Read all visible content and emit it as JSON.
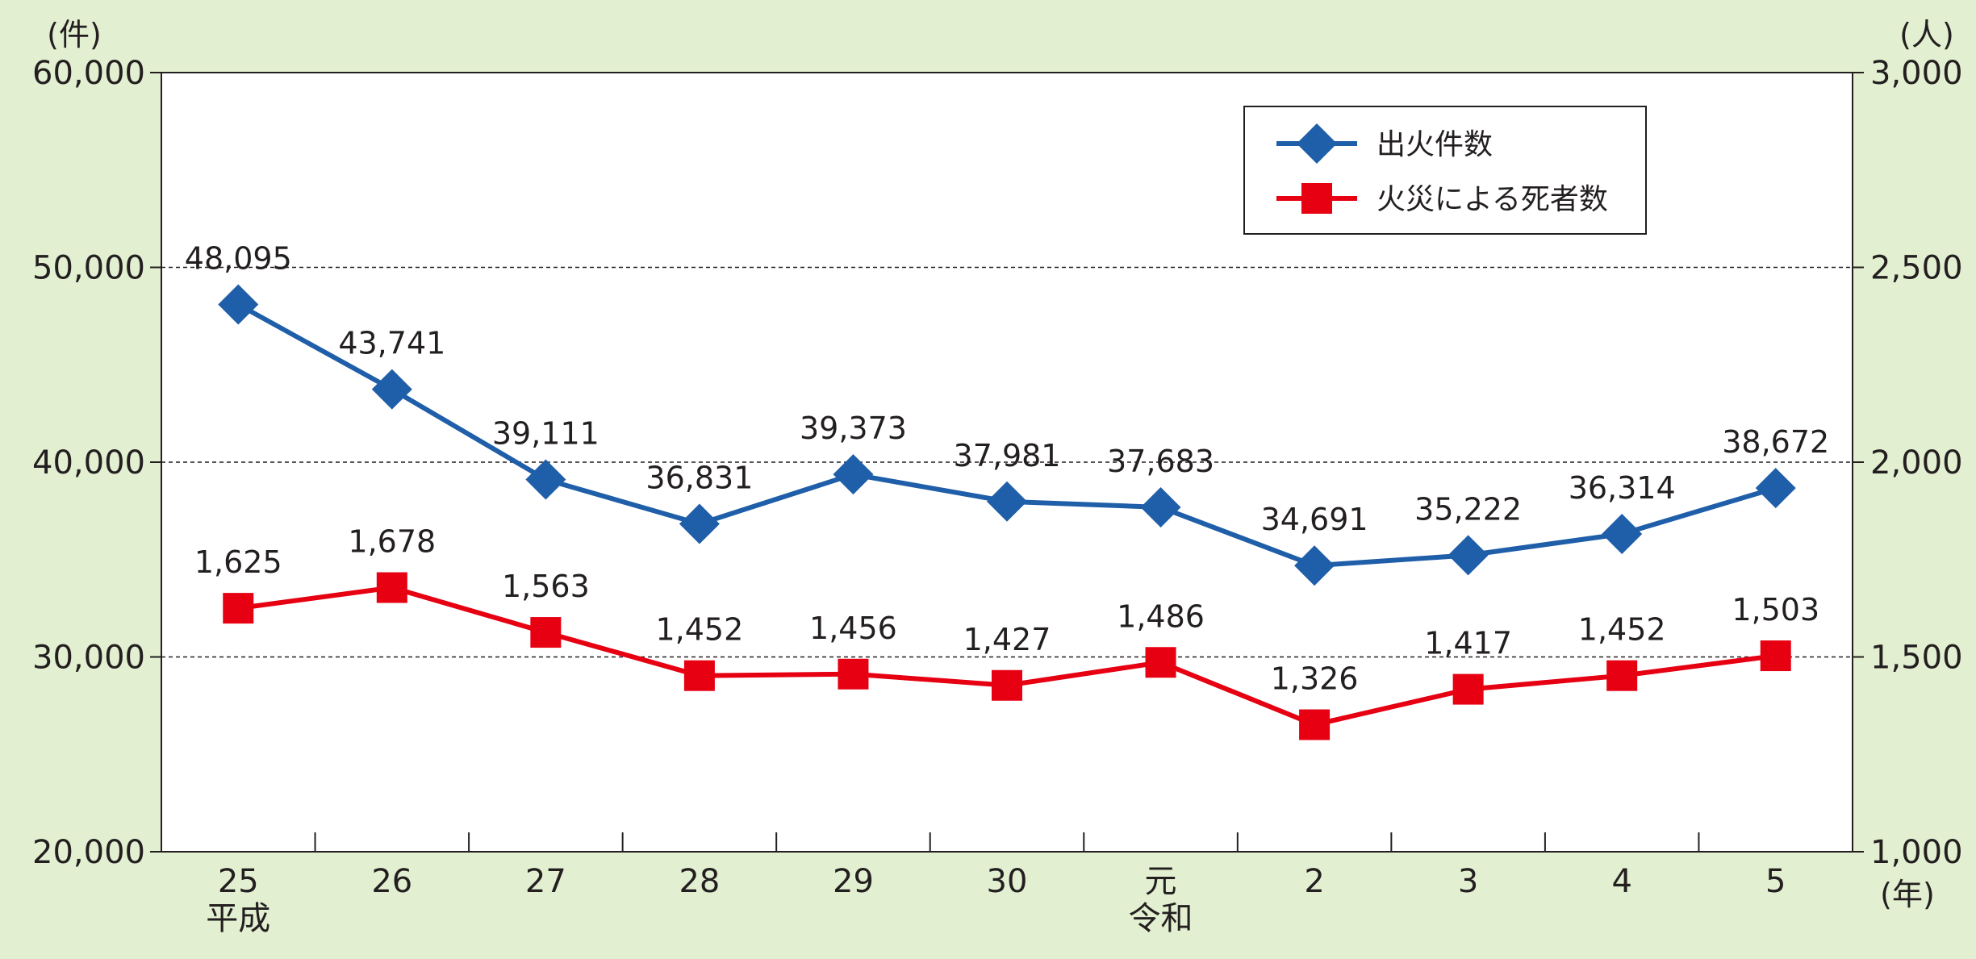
{
  "chart_data": {
    "type": "line",
    "left_unit": "(件)",
    "right_unit": "(人)",
    "x_unit": "(年)",
    "categories": [
      "25",
      "26",
      "27",
      "28",
      "29",
      "30",
      "元",
      "2",
      "3",
      "4",
      "5"
    ],
    "era_labels": [
      {
        "category": "25",
        "text": "平成"
      },
      {
        "category": "元",
        "text": "令和"
      }
    ],
    "y_left": {
      "min": 20000,
      "max": 60000,
      "ticks": [
        20000,
        30000,
        40000,
        50000,
        60000
      ],
      "tick_labels": [
        "20,000",
        "30,000",
        "40,000",
        "50,000",
        "60,000"
      ]
    },
    "y_right": {
      "min": 1000,
      "max": 3000,
      "ticks": [
        1000,
        1500,
        2000,
        2500,
        3000
      ],
      "tick_labels": [
        "1,000",
        "1,500",
        "2,000",
        "2,500",
        "3,000"
      ]
    },
    "gridlines": [
      30000,
      40000,
      50000
    ],
    "legend_position": "top-right",
    "series": [
      {
        "name": "出火件数",
        "axis": "left",
        "color": "#1f5ea8",
        "marker": "diamond",
        "values": [
          48095,
          43741,
          39111,
          36831,
          39373,
          37981,
          37683,
          34691,
          35222,
          36314,
          38672
        ],
        "value_labels": [
          "48,095",
          "43,741",
          "39,111",
          "36,831",
          "39,373",
          "37,981",
          "37,683",
          "34,691",
          "35,222",
          "36,314",
          "38,672"
        ]
      },
      {
        "name": "火災による死者数",
        "axis": "right",
        "color": "#e60012",
        "marker": "square",
        "values": [
          1625,
          1678,
          1563,
          1452,
          1456,
          1427,
          1486,
          1326,
          1417,
          1452,
          1503
        ],
        "value_labels": [
          "1,625",
          "1,678",
          "1,563",
          "1,452",
          "1,456",
          "1,427",
          "1,486",
          "1,326",
          "1,417",
          "1,452",
          "1,503"
        ]
      }
    ]
  }
}
